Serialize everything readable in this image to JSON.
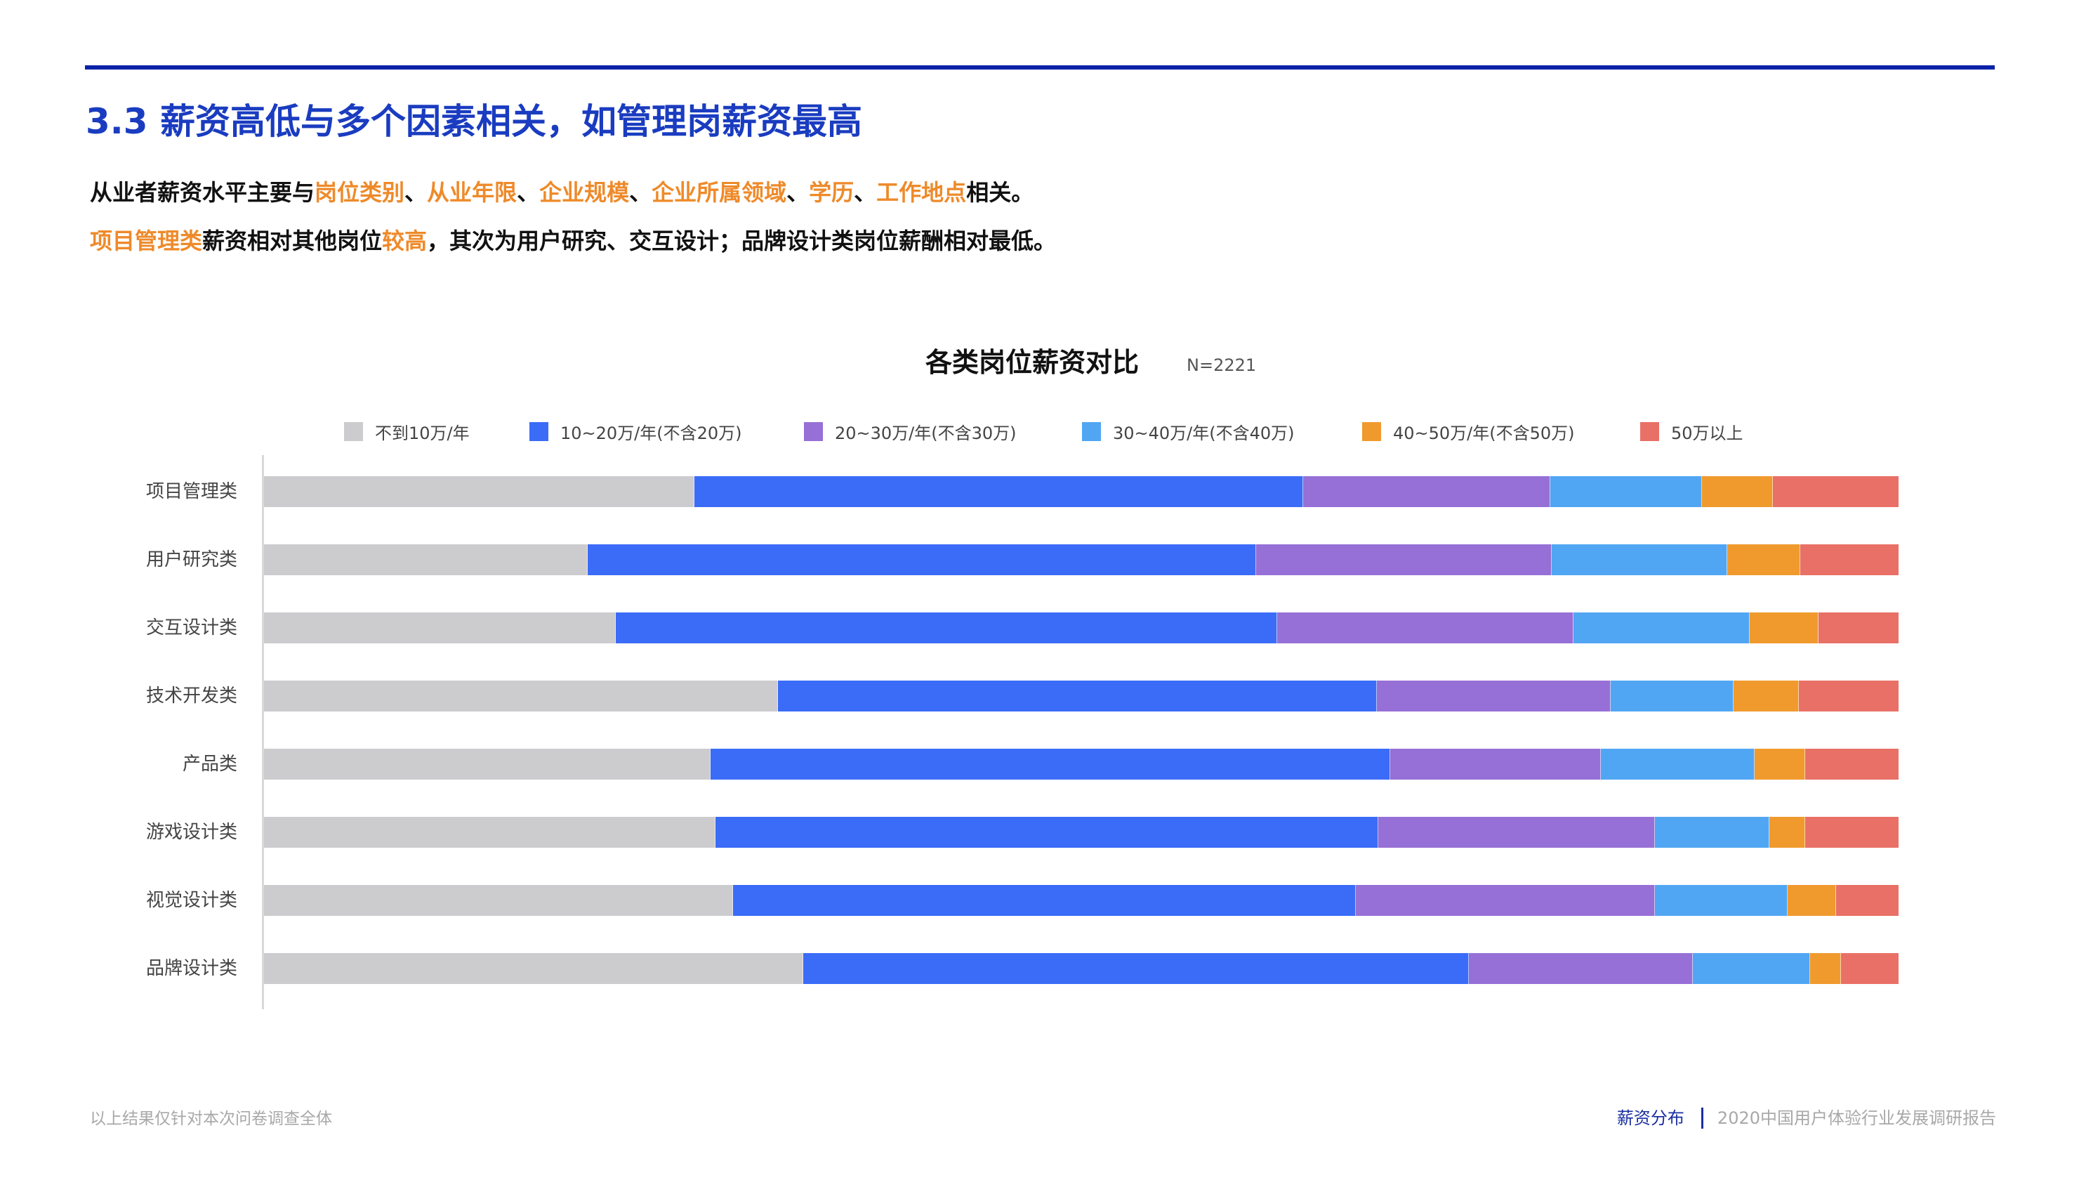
{
  "header": {
    "title": "3.3 薪资高低与多个因素相关，如管理岗薪资最高",
    "accent_color": "#1a3cc0",
    "highlight_color": "#ee8a2a"
  },
  "summary": {
    "line1": [
      {
        "text": "从业者薪资水平主要与",
        "hl": false
      },
      {
        "text": "岗位类别",
        "hl": true
      },
      {
        "text": "、",
        "hl": false
      },
      {
        "text": "从业年限",
        "hl": true
      },
      {
        "text": "、",
        "hl": false
      },
      {
        "text": "企业规模",
        "hl": true
      },
      {
        "text": "、",
        "hl": false
      },
      {
        "text": "企业所属领域",
        "hl": true
      },
      {
        "text": "、",
        "hl": false
      },
      {
        "text": "学历",
        "hl": true
      },
      {
        "text": "、",
        "hl": false
      },
      {
        "text": "工作地点",
        "hl": true
      },
      {
        "text": "相关。",
        "hl": false
      }
    ],
    "line2": [
      {
        "text": "项目管理类",
        "hl": true
      },
      {
        "text": "薪资相对其他岗位",
        "hl": false
      },
      {
        "text": "较高",
        "hl": true
      },
      {
        "text": "，其次为用户研究、交互设计；品牌设计类岗位薪酬相对最低。",
        "hl": false
      }
    ]
  },
  "chart": {
    "title": "各类岗位薪资对比",
    "sample_size": "N=2221"
  },
  "chart_data": {
    "type": "bar",
    "orientation": "horizontal",
    "stacked": true,
    "normalized": true,
    "title": "各类岗位薪资对比",
    "subtitle": "N=2221",
    "xlabel": "",
    "ylabel": "",
    "xlim": [
      0,
      100
    ],
    "grid": false,
    "legend_position": "top",
    "categories": [
      "项目管理类",
      "用户研究类",
      "交互设计类",
      "技术开发类",
      "产品类",
      "游戏设计类",
      "视觉设计类",
      "品牌设计类"
    ],
    "series": [
      {
        "name": "不到10万/年",
        "color": "#cccbce",
        "values": [
          26.3,
          19.8,
          21.5,
          31.4,
          27.3,
          27.6,
          28.7,
          33.0
        ]
      },
      {
        "name": "10~20万/年(不含20万)",
        "color": "#3b6cf8",
        "values": [
          37.2,
          40.9,
          40.5,
          36.6,
          41.6,
          40.5,
          38.1,
          40.7
        ]
      },
      {
        "name": "20~30万/年(不含30万)",
        "color": "#9670d6",
        "values": [
          15.1,
          18.1,
          18.1,
          14.3,
          12.9,
          16.9,
          18.3,
          13.7
        ]
      },
      {
        "name": "30~40万/年(不含40万)",
        "color": "#51a6f3",
        "values": [
          9.3,
          10.7,
          10.8,
          7.5,
          9.4,
          7.0,
          8.1,
          7.2
        ]
      },
      {
        "name": "40~50万/年(不含50万)",
        "color": "#f09a2e",
        "values": [
          4.3,
          4.5,
          4.2,
          4.0,
          3.1,
          2.2,
          3.0,
          1.9
        ]
      },
      {
        "name": "50万以上",
        "color": "#e97066",
        "values": [
          7.7,
          6.0,
          4.9,
          6.1,
          5.7,
          5.7,
          3.8,
          3.5
        ]
      }
    ]
  },
  "footer": {
    "note": "以上结果仅针对本次问卷调查全体",
    "section": "薪资分布",
    "report": "2020中国用户体验行业发展调研报告"
  }
}
